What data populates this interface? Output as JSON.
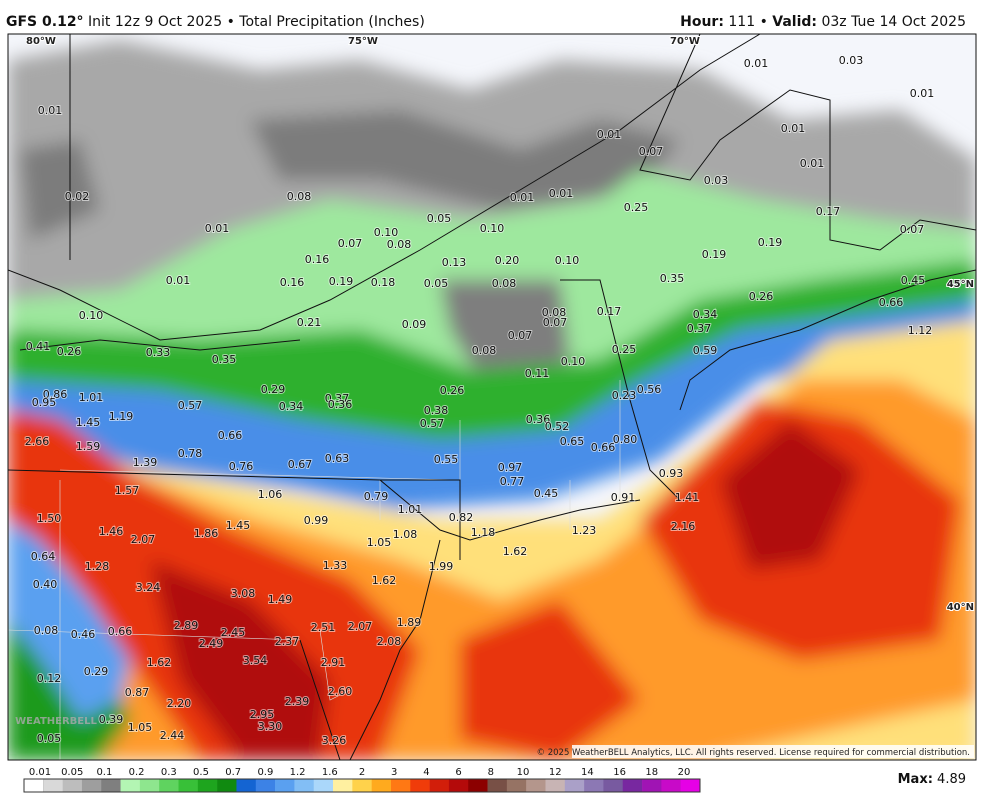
{
  "header": {
    "model": "GFS 0.12°",
    "run": "Init 12z 9 Oct 2025",
    "separator": "•",
    "product": "Total Precipitation (Inches)",
    "hour_label": "Hour:",
    "hour": "111",
    "valid_label": "Valid:",
    "valid": "03z Tue 14 Oct 2025"
  },
  "map": {
    "grid_labels": [
      "80°W",
      "75°W",
      "70°W",
      "45°N",
      "40°N"
    ],
    "point_values": [
      "0.01",
      "0.02",
      "0.01",
      "0.01",
      "0.08",
      "0.05",
      "0.10",
      "0.08",
      "0.07",
      "0.16",
      "0.19",
      "0.16",
      "0.18",
      "0.05",
      "0.13",
      "0.10",
      "0.20",
      "0.08",
      "0.10",
      "0.01",
      "0.01",
      "0.01",
      "0.07",
      "0.01",
      "0.03",
      "0.01",
      "0.01",
      "0.01",
      "0.03",
      "0.25",
      "0.17",
      "0.19",
      "0.19",
      "0.07",
      "0.35",
      "0.26",
      "0.45",
      "0.66",
      "0.34",
      "0.37",
      "1.12",
      "0.17",
      "0.07",
      "0.08",
      "0.09",
      "0.21",
      "0.10",
      "0.41",
      "0.26",
      "0.33",
      "0.35",
      "0.07",
      "0.08",
      "0.25",
      "0.59",
      "0.10",
      "0.11",
      "0.26",
      "0.29",
      "0.37",
      "0.36",
      "0.34",
      "0.38",
      "0.57",
      "0.56",
      "0.23",
      "0.86",
      "0.95",
      "1.01",
      "0.57",
      "1.19",
      "1.45",
      "0.36",
      "0.52",
      "0.65",
      "0.66",
      "0.80",
      "2.66",
      "1.59",
      "0.66",
      "0.78",
      "0.76",
      "0.67",
      "0.63",
      "0.55",
      "0.97",
      "0.77",
      "0.93",
      "1.39",
      "1.57",
      "1.06",
      "0.79",
      "0.45",
      "0.91",
      "1.41",
      "1.01",
      "0.82",
      "0.99",
      "1.50",
      "1.46",
      "1.45",
      "1.86",
      "2.07",
      "1.05",
      "1.08",
      "1.18",
      "1.23",
      "2.16",
      "1.62",
      "0.64",
      "1.28",
      "1.33",
      "1.99",
      "1.62",
      "0.40",
      "3.24",
      "3.08",
      "1.49",
      "0.08",
      "0.46",
      "0.66",
      "2.89",
      "2.45",
      "2.49",
      "2.37",
      "2.51",
      "2.07",
      "1.89",
      "2.08",
      "1.62",
      "3.54",
      "2.91",
      "0.29",
      "0.12",
      "0.87",
      "2.60",
      "2.20",
      "2.39",
      "0.39",
      "1.05",
      "2.95",
      "3.30",
      "2.44",
      "3.26",
      "0.05"
    ],
    "copyright": "© 2025 WeatherBELL Analytics, LLC. All rights reserved. License required for commercial distribution.",
    "watermark": "WEATHERBELL"
  },
  "colorbar": {
    "labels": [
      "0.01",
      "0.05",
      "0.1",
      "0.2",
      "0.3",
      "0.5",
      "0.7",
      "0.9",
      "1.2",
      "1.6",
      "2",
      "3",
      "4",
      "6",
      "8",
      "10",
      "12",
      "14",
      "16",
      "18",
      "20"
    ],
    "colors": [
      "#ffffff",
      "#d9d9d9",
      "#bdbdbd",
      "#9e9e9e",
      "#7f7f7f",
      "#b3f5b3",
      "#8ee68e",
      "#5fd35f",
      "#38c038",
      "#1ea51e",
      "#108a10",
      "#1464d2",
      "#3c82e6",
      "#5aa0f0",
      "#82bef5",
      "#aad7fa",
      "#fff0a0",
      "#ffd24b",
      "#ffaa1e",
      "#ff7814",
      "#f03c0a",
      "#d21e0a",
      "#b40a0a",
      "#8c0000",
      "#785046",
      "#967364",
      "#b4968c",
      "#c8b4b4",
      "#aaa0c8",
      "#8c78b4",
      "#785aa0",
      "#7828a0",
      "#a014b4",
      "#c80ac8",
      "#e600e6"
    ]
  },
  "footer": {
    "max_label": "Max:",
    "max": "4.89"
  }
}
